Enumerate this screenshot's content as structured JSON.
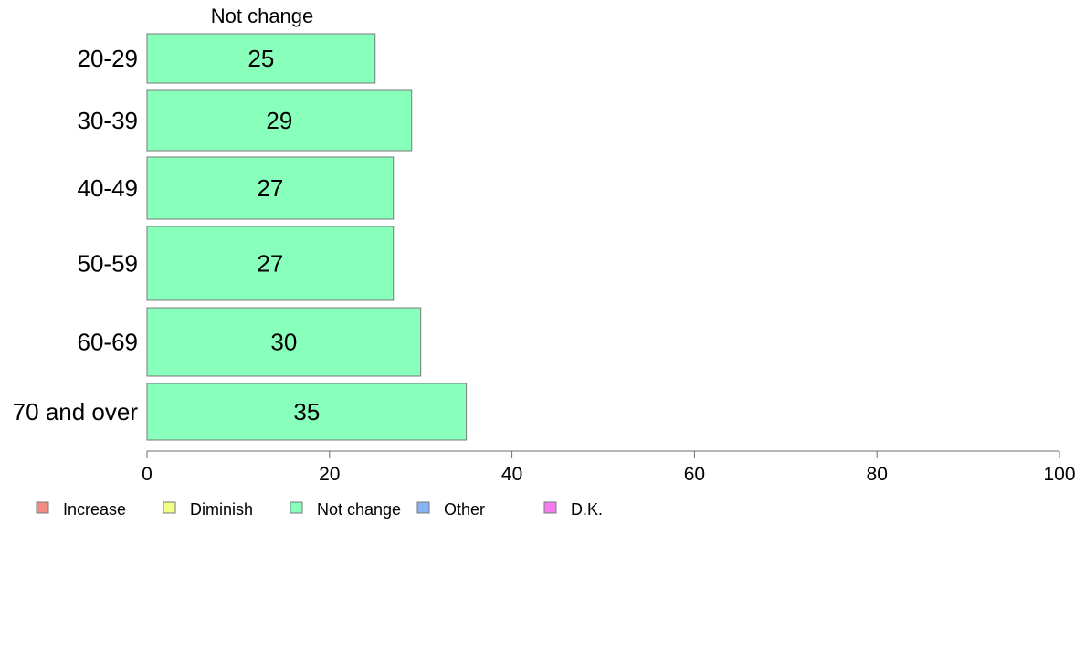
{
  "chart_data": {
    "type": "bar",
    "orientation": "horizontal",
    "panel_title": "Not change",
    "categories": [
      "20-29",
      "30-39",
      "40-49",
      "50-59",
      "60-69",
      "70 and over"
    ],
    "series": [
      {
        "name": "Not change",
        "values": [
          25,
          29,
          27,
          27,
          30,
          35
        ],
        "color": "#88ffbb"
      }
    ],
    "xlim": [
      0,
      100
    ],
    "xticks": [
      0,
      20,
      40,
      60,
      80,
      100
    ],
    "grid": false,
    "legend_position": "bottom-left",
    "legend": [
      {
        "label": "Increase",
        "color": "#f28b82"
      },
      {
        "label": "Diminish",
        "color": "#f0ff88"
      },
      {
        "label": "Not change",
        "color": "#88ffbb"
      },
      {
        "label": "Other",
        "color": "#88b4f5"
      },
      {
        "label": "D.K.",
        "color": "#f47cf0"
      }
    ]
  }
}
